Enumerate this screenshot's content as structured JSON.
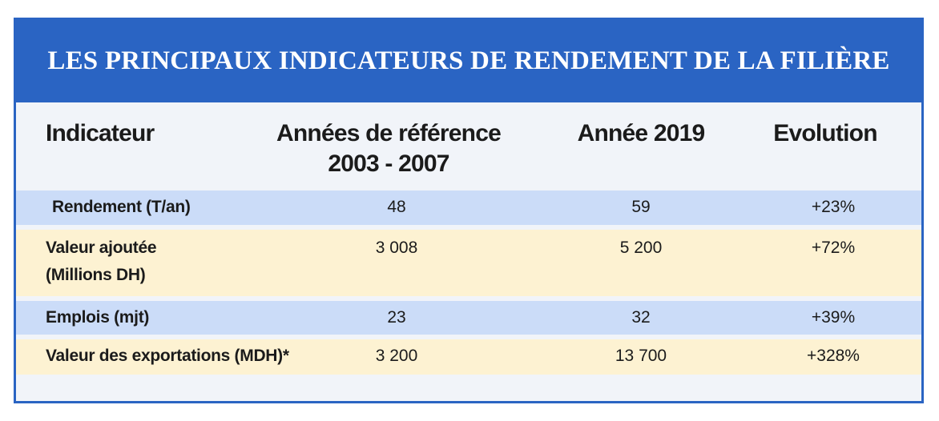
{
  "title": "LES PRINCIPAUX INDICATEURS DE RENDEMENT DE LA FILIÈRE",
  "columns": {
    "indicator": "Indicateur",
    "reference_line1": "Années de référence",
    "reference_line2": "2003 - 2007",
    "year2019": "Année 2019",
    "evolution": "Evolution"
  },
  "rows": [
    {
      "label": "Rendement (T/an)",
      "label2": "",
      "ref": "48",
      "y2019": "59",
      "evolution": "+23%"
    },
    {
      "label": "Valeur ajoutée",
      "label2": "(Millions DH)",
      "ref": "3 008",
      "y2019": "5 200",
      "evolution": "+72%"
    },
    {
      "label": "Emplois (mjt)",
      "label2": "",
      "ref": "23",
      "y2019": "32",
      "evolution": "+39%"
    },
    {
      "label": "Valeur des exportations (MDH)*",
      "label2": "",
      "ref": "3 200",
      "y2019": "13 700",
      "evolution": "+328%"
    }
  ],
  "colors": {
    "banner": "#2a64c3",
    "row_blue": "#cbdcf8",
    "row_yellow": "#fdf2d2",
    "panel": "#f1f4f9"
  }
}
